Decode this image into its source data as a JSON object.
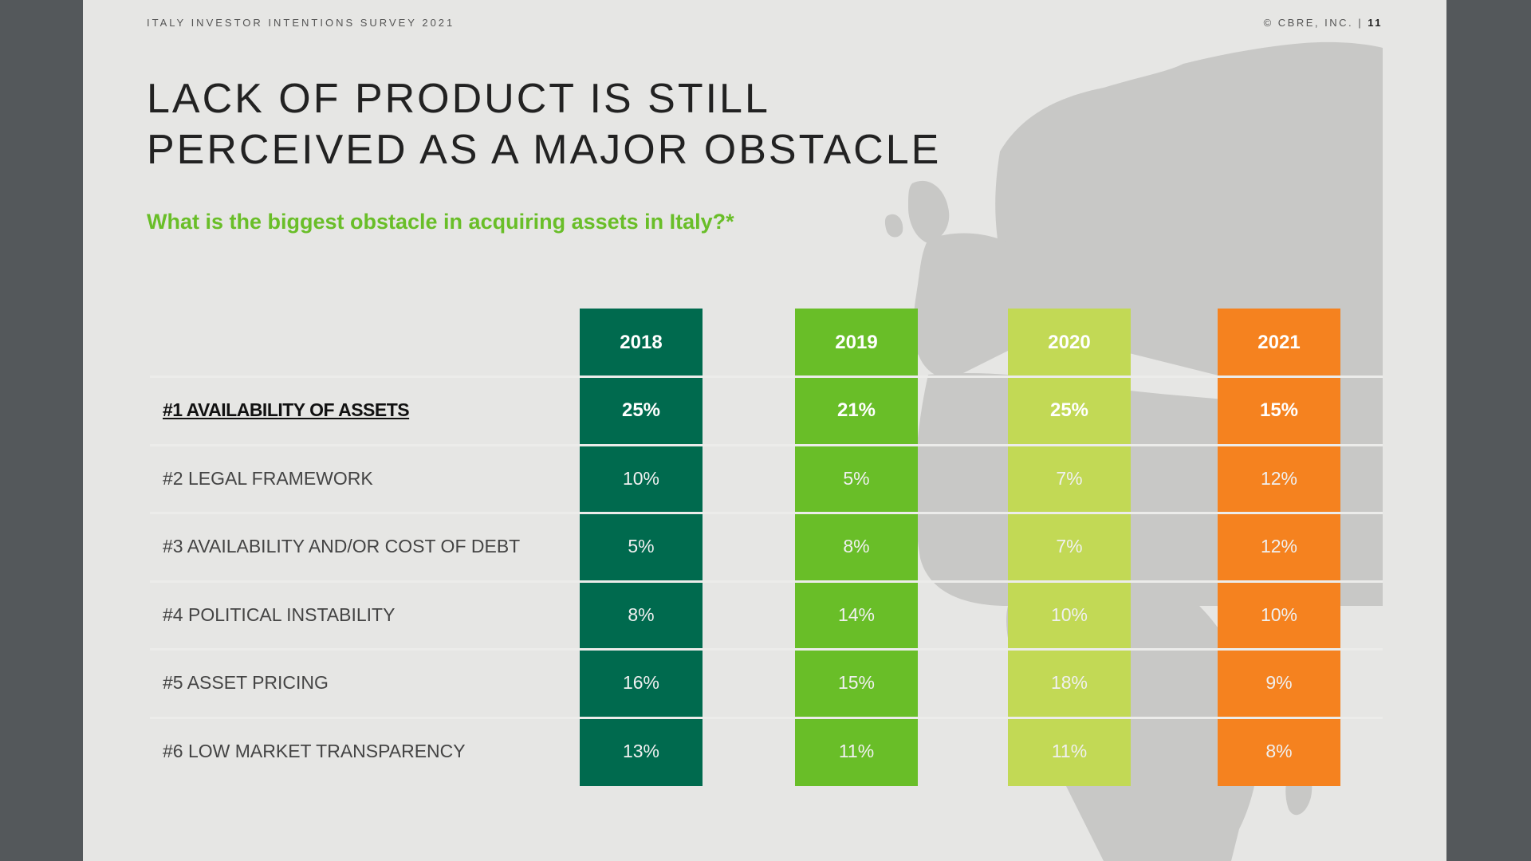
{
  "header": {
    "survey": "ITALY INVESTOR INTENTIONS SURVEY 2021",
    "copyright": "© CBRE, INC. |",
    "page_number": "11"
  },
  "title": {
    "line1": "LACK OF PRODUCT IS STILL",
    "line2": "PERCEIVED AS A MAJOR OBSTACLE"
  },
  "question": "What is the biggest obstacle in acquiring assets in Italy?*",
  "colors": {
    "2018": "#006a4e",
    "2019": "#69be28",
    "2020": "#c2d955",
    "2021": "#f5821f",
    "question": "#69be28"
  },
  "chart_data": {
    "type": "table",
    "columns": [
      "2018",
      "2019",
      "2020",
      "2021"
    ],
    "rows": [
      {
        "label": "#1 AVAILABILITY OF ASSETS",
        "values": [
          "25%",
          "21%",
          "25%",
          "15%"
        ]
      },
      {
        "label": "#2 LEGAL FRAMEWORK",
        "values": [
          "10%",
          "5%",
          "7%",
          "12%"
        ]
      },
      {
        "label": "#3 AVAILABILITY AND/OR COST OF DEBT",
        "values": [
          "5%",
          "8%",
          "7%",
          "12%"
        ]
      },
      {
        "label": "#4 POLITICAL INSTABILITY",
        "values": [
          "8%",
          "14%",
          "10%",
          "10%"
        ]
      },
      {
        "label": "#5 ASSET PRICING",
        "values": [
          "16%",
          "15%",
          "18%",
          "9%"
        ]
      },
      {
        "label": "#6 LOW MARKET TRANSPARENCY",
        "values": [
          "13%",
          "11%",
          "11%",
          "8%"
        ]
      }
    ]
  }
}
